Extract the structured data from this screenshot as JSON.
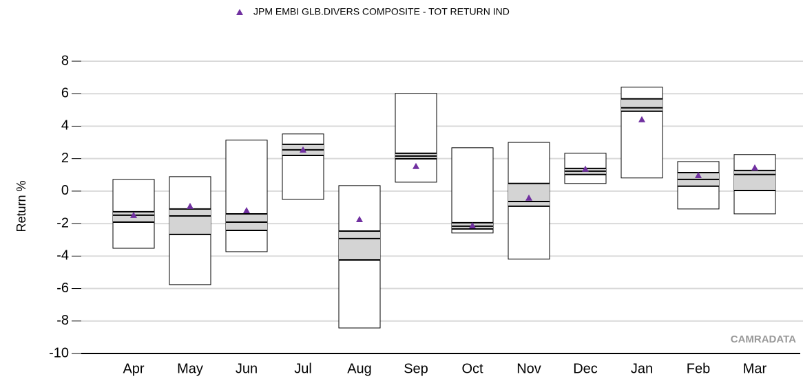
{
  "chart_data": {
    "type": "box",
    "y_label": "Return %",
    "annotation": "CAMRADATA",
    "categories": [
      "Apr",
      "May",
      "Jun",
      "Jul",
      "Aug",
      "Sep",
      "Oct",
      "Nov",
      "Dec",
      "Jan",
      "Feb",
      "Mar"
    ],
    "boxes": {
      "max": [
        0.72,
        0.89,
        3.14,
        3.52,
        0.34,
        6.02,
        2.67,
        3.0,
        2.33,
        6.4,
        1.82,
        2.25
      ],
      "q3": [
        -1.27,
        -1.1,
        -1.4,
        2.88,
        -2.46,
        2.33,
        -1.95,
        0.47,
        1.4,
        5.68,
        1.14,
        1.27
      ],
      "median": [
        -1.48,
        -1.53,
        -1.91,
        2.54,
        -2.92,
        2.16,
        -2.16,
        -0.64,
        1.23,
        5.13,
        0.72,
        1.02
      ],
      "q1": [
        -1.91,
        -2.67,
        -2.42,
        2.2,
        -4.24,
        1.99,
        -2.33,
        -0.93,
        1.02,
        4.92,
        0.3,
        0.04
      ],
      "min": [
        -3.52,
        -5.76,
        -3.73,
        -0.51,
        -8.43,
        0.55,
        -2.58,
        -4.19,
        0.47,
        0.81,
        -1.1,
        -1.4
      ],
      "color": "#d4d4d4"
    },
    "series": [
      {
        "name": "JPM EMBI GLB.DIVERS COMPOSITE - TOT RETURN IND",
        "color": "#7030a0",
        "values": [
          -1.48,
          -0.93,
          -1.19,
          2.54,
          -1.74,
          1.53,
          -2.12,
          -0.42,
          1.36,
          4.41,
          0.97,
          1.44
        ]
      }
    ],
    "ylim": [
      -10,
      8
    ],
    "yticks": [
      -10,
      -8,
      -6,
      -4,
      -2,
      0,
      2,
      4,
      6,
      8
    ],
    "grid": true,
    "legend": "top"
  }
}
